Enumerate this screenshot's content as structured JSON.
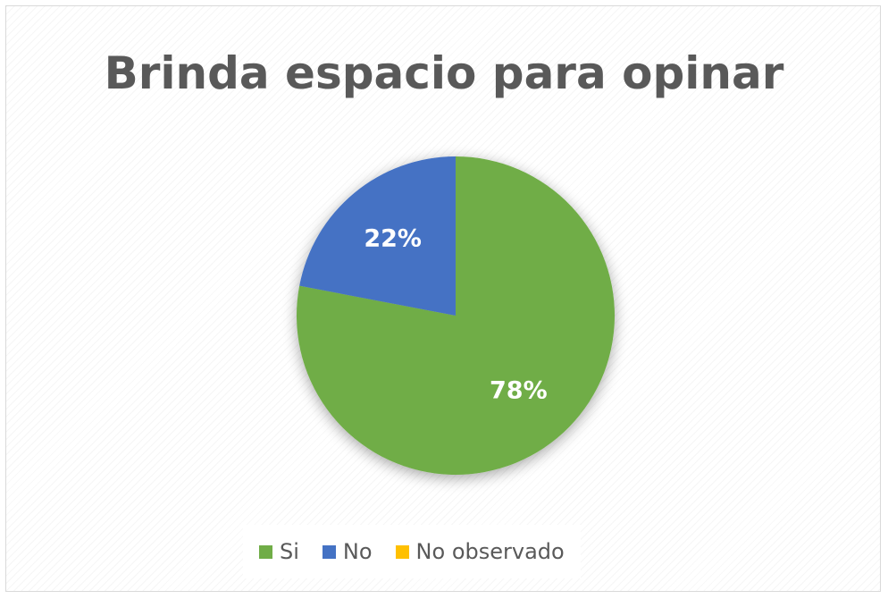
{
  "chart_data": {
    "type": "pie",
    "title": "Brinda espacio para opinar",
    "slices": [
      {
        "name": "Si",
        "value": 78,
        "label": "78%",
        "color": "#70ad47"
      },
      {
        "name": "No",
        "value": 22,
        "label": "22%",
        "color": "#4472c4"
      },
      {
        "name": "No observado",
        "value": 0,
        "label": "",
        "color": "#ffc000"
      }
    ],
    "legend": {
      "placement": "bottom",
      "entries": [
        "Si",
        "No",
        "No observado"
      ]
    },
    "start_angle": "12 o'clock",
    "direction": "clockwise"
  }
}
